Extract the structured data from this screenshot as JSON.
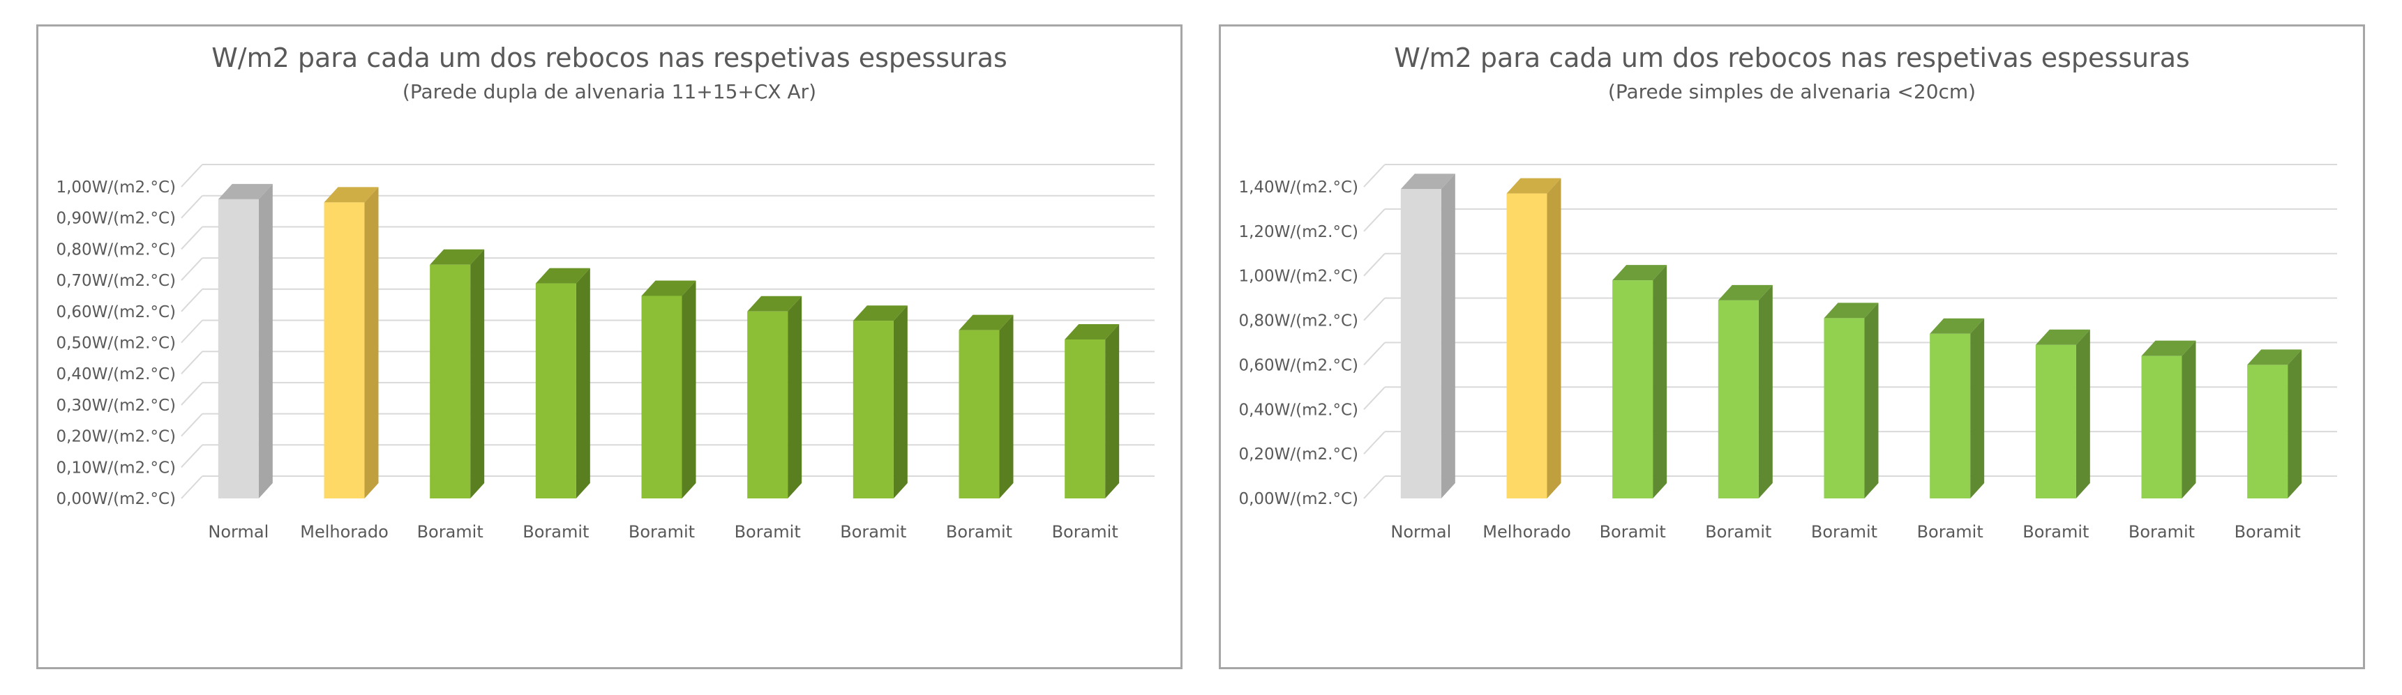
{
  "chart_data": [
    {
      "type": "bar",
      "title": "W/m2 para cada um dos rebocos nas respetivas espessuras",
      "subtitle": "(Parede dupla de alvenaria 11+15+CX Ar)",
      "categories": [
        "Normal",
        "Melhorado",
        "Boramit",
        "Boramit",
        "Boramit",
        "Boramit",
        "Boramit",
        "Boramit",
        "Boramit"
      ],
      "values": [
        0.96,
        0.95,
        0.75,
        0.69,
        0.65,
        0.6,
        0.57,
        0.54,
        0.51
      ],
      "y_ticks": [
        "0,00W/(m2.°C)",
        "0,10W/(m2.°C)",
        "0,20W/(m2.°C)",
        "0,30W/(m2.°C)",
        "0,40W/(m2.°C)",
        "0,50W/(m2.°C)",
        "0,60W/(m2.°C)",
        "0,70W/(m2.°C)",
        "0,80W/(m2.°C)",
        "0,90W/(m2.°C)",
        "1,00W/(m2.°C)"
      ],
      "ylim": [
        0,
        1.0
      ],
      "grid": true,
      "legend": "none",
      "bar_colors": [
        "#d9d9d9",
        "#ffd966",
        "#8cbf35",
        "#8cbf35",
        "#8cbf35",
        "#8cbf35",
        "#8cbf35",
        "#8cbf35",
        "#8cbf35"
      ],
      "side_colors": [
        "#a6a6a6",
        "#bf9f3e",
        "#5a7f20",
        "#5a7f20",
        "#5a7f20",
        "#5a7f20",
        "#5a7f20",
        "#5a7f20",
        "#5a7f20"
      ],
      "top_colors": [
        "#b0b0b0",
        "#cfae45",
        "#6b9426",
        "#6b9426",
        "#6b9426",
        "#6b9426",
        "#6b9426",
        "#6b9426",
        "#6b9426"
      ]
    },
    {
      "type": "bar",
      "title": "W/m2 para cada um dos rebocos nas respetivas espessuras",
      "subtitle": "(Parede simples de alvenaria <20cm)",
      "categories": [
        "Normal",
        "Melhorado",
        "Boramit",
        "Boramit",
        "Boramit",
        "Boramit",
        "Boramit",
        "Boramit",
        "Boramit"
      ],
      "values": [
        1.39,
        1.37,
        0.98,
        0.89,
        0.81,
        0.74,
        0.69,
        0.64,
        0.6
      ],
      "y_ticks": [
        "0,00W/(m2.°C)",
        "0,20W/(m2.°C)",
        "0,40W/(m2.°C)",
        "0,60W/(m2.°C)",
        "0,80W/(m2.°C)",
        "1,00W/(m2.°C)",
        "1,20W/(m2.°C)",
        "1,40W/(m2.°C)"
      ],
      "ylim": [
        0,
        1.4
      ],
      "grid": true,
      "legend": "none",
      "bar_colors": [
        "#d9d9d9",
        "#ffd966",
        "#92d050",
        "#92d050",
        "#92d050",
        "#92d050",
        "#92d050",
        "#92d050",
        "#92d050"
      ],
      "side_colors": [
        "#a6a6a6",
        "#bf9f3e",
        "#5f8a32",
        "#5f8a32",
        "#5f8a32",
        "#5f8a32",
        "#5f8a32",
        "#5f8a32",
        "#5f8a32"
      ],
      "top_colors": [
        "#b0b0b0",
        "#cfae45",
        "#6e9e3a",
        "#6e9e3a",
        "#6e9e3a",
        "#6e9e3a",
        "#6e9e3a",
        "#6e9e3a",
        "#6e9e3a"
      ]
    }
  ]
}
